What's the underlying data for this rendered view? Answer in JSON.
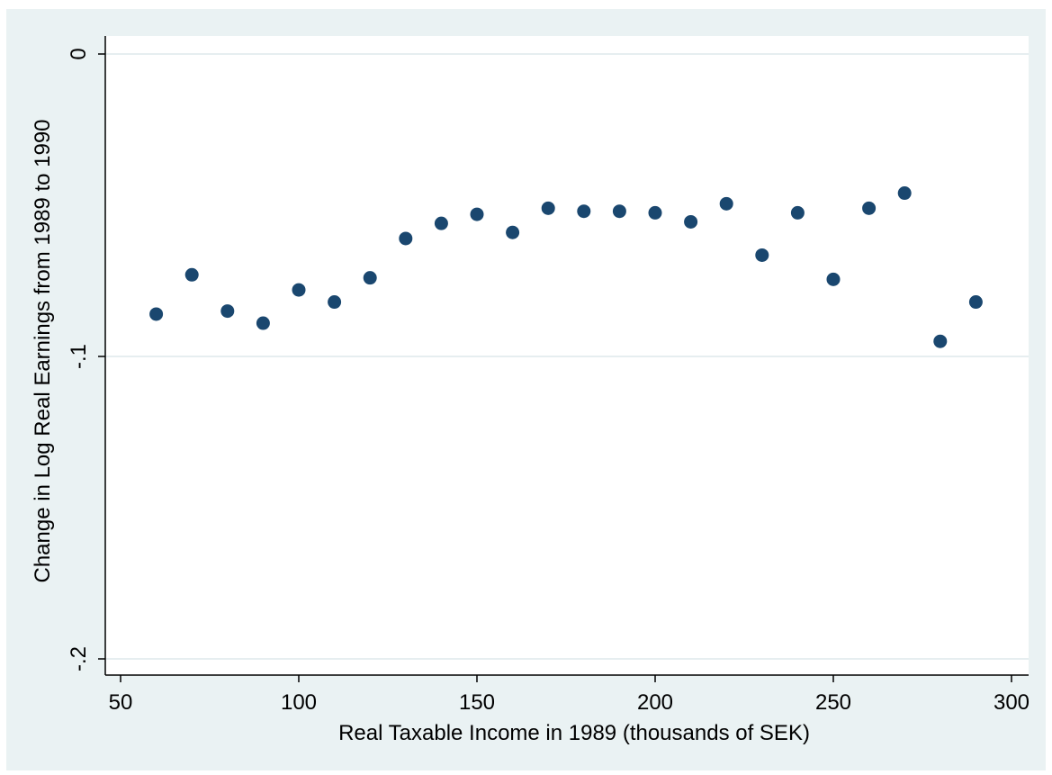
{
  "chart_data": {
    "type": "scatter",
    "title": "",
    "xlabel": "Real Taxable Income in 1989 (thousands of SEK)",
    "ylabel": "Change in Log Real Earnings from 1989 to 1990",
    "xlim": [
      50,
      300
    ],
    "ylim": [
      -0.2,
      0
    ],
    "xticks": [
      50,
      100,
      150,
      200,
      250,
      300
    ],
    "xtick_labels": [
      "50",
      "100",
      "150",
      "200",
      "250",
      "300"
    ],
    "yticks": [
      0,
      -0.1,
      -0.2
    ],
    "ytick_labels": [
      "0",
      "-.1",
      "-.2"
    ],
    "grid": "horizontal",
    "marker_color": "#1a476f",
    "background_color": "#eaf2f3",
    "plot_background_color": "#ffffff",
    "points": [
      {
        "x": 60,
        "y": -0.086
      },
      {
        "x": 70,
        "y": -0.073
      },
      {
        "x": 80,
        "y": -0.085
      },
      {
        "x": 90,
        "y": -0.089
      },
      {
        "x": 100,
        "y": -0.078
      },
      {
        "x": 110,
        "y": -0.082
      },
      {
        "x": 120,
        "y": -0.074
      },
      {
        "x": 130,
        "y": -0.061
      },
      {
        "x": 140,
        "y": -0.056
      },
      {
        "x": 150,
        "y": -0.053
      },
      {
        "x": 160,
        "y": -0.059
      },
      {
        "x": 170,
        "y": -0.051
      },
      {
        "x": 180,
        "y": -0.052
      },
      {
        "x": 190,
        "y": -0.052
      },
      {
        "x": 200,
        "y": -0.0525
      },
      {
        "x": 210,
        "y": -0.0555
      },
      {
        "x": 220,
        "y": -0.0495
      },
      {
        "x": 230,
        "y": -0.0665
      },
      {
        "x": 240,
        "y": -0.0525
      },
      {
        "x": 250,
        "y": -0.0745
      },
      {
        "x": 260,
        "y": -0.051
      },
      {
        "x": 270,
        "y": -0.046
      },
      {
        "x": 280,
        "y": -0.095
      },
      {
        "x": 290,
        "y": -0.082
      }
    ]
  }
}
